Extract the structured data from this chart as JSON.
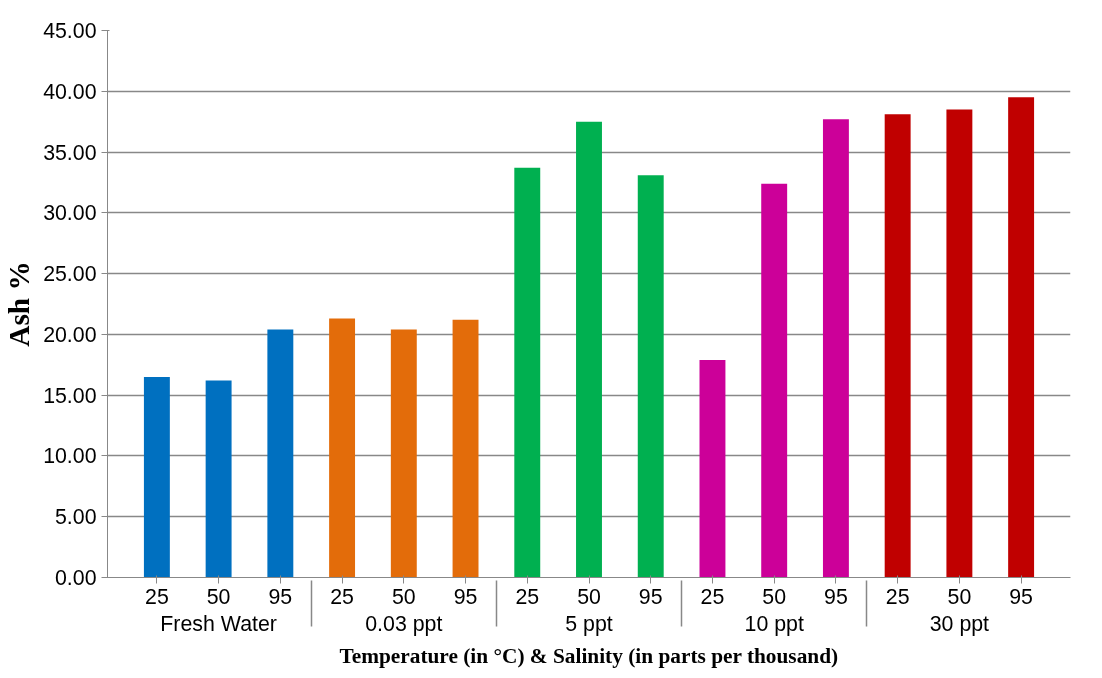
{
  "chart_data": {
    "type": "bar",
    "xlabel": "Temperature (in °C) & Salinity (in parts per thousand)",
    "ylabel": "Ash %",
    "categories": [
      "25",
      "50",
      "95",
      "25",
      "50",
      "95",
      "25",
      "50",
      "95",
      "25",
      "50",
      "95",
      "25",
      "50",
      "95"
    ],
    "series": [
      {
        "name": "Fresh Water",
        "color": "#0070c0",
        "values": [
          16.5,
          16.2,
          20.4,
          null,
          null,
          null,
          null,
          null,
          null,
          null,
          null,
          null,
          null,
          null,
          null
        ]
      },
      {
        "name": "0.03 ppt",
        "color": "#e36c0a",
        "values": [
          null,
          null,
          null,
          21.3,
          20.4,
          21.2,
          null,
          null,
          null,
          null,
          null,
          null,
          null,
          null,
          null
        ]
      },
      {
        "name": "5 ppt",
        "color": "#00b050",
        "values": [
          null,
          null,
          null,
          null,
          null,
          null,
          33.7,
          37.5,
          33.1,
          null,
          null,
          null,
          null,
          null,
          null
        ]
      },
      {
        "name": "10 ppt",
        "color": "#cc0099",
        "values": [
          null,
          null,
          null,
          null,
          null,
          null,
          null,
          null,
          null,
          17.9,
          32.4,
          37.7,
          null,
          null,
          null
        ]
      },
      {
        "name": "30 ppt",
        "color": "#c00000",
        "values": [
          null,
          null,
          null,
          null,
          null,
          null,
          null,
          null,
          null,
          null,
          null,
          null,
          38.1,
          38.5,
          39.5
        ]
      }
    ],
    "ylim": [
      0,
      45
    ],
    "yticks": [
      {
        "value": 0,
        "label": "0.00"
      },
      {
        "value": 5,
        "label": "5.00"
      },
      {
        "value": 10,
        "label": "10.00"
      },
      {
        "value": 15,
        "label": "15.00"
      },
      {
        "value": 20,
        "label": "20.00"
      },
      {
        "value": 25,
        "label": "25.00"
      },
      {
        "value": 30,
        "label": "30.00"
      },
      {
        "value": 35,
        "label": "35.00"
      },
      {
        "value": 40,
        "label": "40.00"
      },
      {
        "value": 45,
        "label": "45.00"
      }
    ],
    "grid": "y"
  }
}
